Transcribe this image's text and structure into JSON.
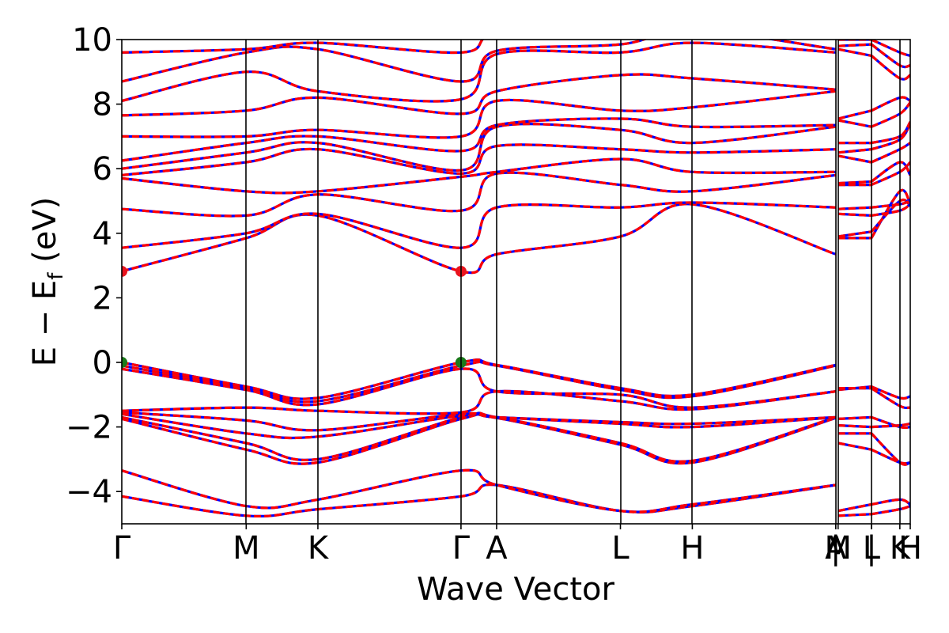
{
  "chart_data": {
    "type": "line",
    "xlabel": "Wave Vector",
    "ylabel": "E − E",
    "ylabel_sub": "f",
    "ylabel_unit": " (eV)",
    "ylim": [
      -5,
      10
    ],
    "yticks": [
      -4,
      -2,
      0,
      2,
      4,
      6,
      8,
      10
    ],
    "ytick_labels": [
      "−4",
      "−2",
      "0",
      "2",
      "4",
      "6",
      "8",
      "10"
    ],
    "xlim": [
      0,
      1
    ],
    "kpoints": [
      {
        "label": "Γ",
        "x": 0.0
      },
      {
        "label": "M",
        "x": 0.1578
      },
      {
        "label": "K",
        "x": 0.2487
      },
      {
        "label": "Γ",
        "x": 0.4302
      },
      {
        "label": "A",
        "x": 0.4754
      },
      {
        "label": "L",
        "x": 0.6324
      },
      {
        "label": "H",
        "x": 0.7236
      },
      {
        "label": "A",
        "x": 0.9055
      },
      {
        "label": "|",
        "x": 0.9055
      },
      {
        "label": "M",
        "x": 0.9085
      },
      {
        "label": "L",
        "x": 0.9508
      },
      {
        "label": "|",
        "x": 0.9508
      },
      {
        "label": "K",
        "x": 0.9868
      },
      {
        "label": "H",
        "x": 1.0
      }
    ],
    "gap_markers": [
      {
        "role": "CBM",
        "color": "#e8141e",
        "points": [
          [
            0.0,
            2.82
          ],
          [
            0.4302,
            2.82
          ]
        ]
      },
      {
        "role": "VBM",
        "color": "#1a7a1a",
        "points": [
          [
            0.0,
            0.0
          ],
          [
            0.4302,
            0.0
          ]
        ]
      }
    ],
    "line_colors": {
      "primary": "#ff0000",
      "secondary": "#0000ff"
    },
    "segments": [
      {
        "x": [
          0.0,
          0.1578,
          0.2487,
          0.4302,
          0.4754,
          0.6324,
          0.7236,
          0.9055
        ],
        "bands": [
          [
            -4.15,
            -4.75,
            -4.55,
            -4.15,
            -3.8,
            -4.6,
            -4.45,
            -3.8
          ],
          [
            -3.35,
            -4.45,
            -4.25,
            -3.35,
            -3.8,
            -4.6,
            -4.4,
            -3.8
          ],
          [
            -1.75,
            -2.7,
            -3.1,
            -1.75,
            -1.72,
            -2.55,
            -3.1,
            -1.72
          ],
          [
            -1.7,
            -2.5,
            -3.0,
            -1.7,
            -1.7,
            -2.5,
            -3.05,
            -1.7
          ],
          [
            -1.6,
            -2.2,
            -2.3,
            -1.65,
            -1.7,
            -1.9,
            -2.0,
            -1.7
          ],
          [
            -1.55,
            -1.8,
            -2.1,
            -1.6,
            -1.7,
            -1.85,
            -1.9,
            -1.7
          ],
          [
            -1.5,
            -1.4,
            -1.5,
            -1.55,
            -0.9,
            -1.2,
            -1.45,
            -0.9
          ],
          [
            -0.2,
            -0.85,
            -1.3,
            -0.2,
            -0.9,
            -1.0,
            -1.4,
            -0.9
          ],
          [
            -0.1,
            -0.8,
            -1.2,
            -0.1,
            -0.1,
            -0.85,
            -1.05,
            -0.1
          ],
          [
            0.0,
            -0.75,
            -1.1,
            0.0,
            -0.08,
            -0.8,
            -1.0,
            -0.08
          ],
          [
            2.82,
            3.85,
            4.55,
            2.82,
            3.35,
            3.9,
            4.9,
            3.35
          ],
          [
            3.55,
            4.0,
            4.6,
            3.55,
            4.8,
            4.8,
            4.95,
            4.8
          ],
          [
            4.75,
            4.55,
            5.2,
            4.7,
            5.85,
            5.5,
            5.3,
            5.8
          ],
          [
            5.7,
            5.3,
            5.3,
            5.75,
            5.9,
            6.3,
            5.9,
            5.9
          ],
          [
            5.8,
            6.2,
            6.6,
            5.85,
            6.7,
            6.6,
            6.5,
            6.6
          ],
          [
            6.0,
            6.5,
            6.8,
            5.95,
            7.3,
            7.2,
            6.8,
            7.3
          ],
          [
            6.25,
            6.8,
            7.0,
            6.55,
            7.35,
            7.55,
            7.3,
            7.35
          ],
          [
            7.0,
            7.0,
            7.2,
            7.0,
            8.1,
            7.8,
            7.9,
            8.4
          ],
          [
            7.65,
            7.8,
            8.2,
            7.7,
            8.4,
            8.9,
            8.8,
            8.45
          ],
          [
            8.1,
            9.0,
            8.4,
            8.15,
            9.55,
            9.6,
            9.9,
            9.6
          ],
          [
            8.7,
            9.6,
            9.7,
            8.7,
            9.65,
            9.85,
            10.3,
            9.7
          ],
          [
            9.6,
            9.7,
            9.9,
            9.6,
            10.2,
            10.4,
            10.5,
            10.3
          ]
        ]
      },
      {
        "x": [
          0.9085,
          0.9508
        ],
        "bands": [
          [
            -4.6,
            -4.4
          ],
          [
            -4.75,
            -4.7
          ],
          [
            -2.5,
            -2.7
          ],
          [
            -2.2,
            -2.2
          ],
          [
            -1.75,
            -1.7
          ],
          [
            -1.95,
            -2.0
          ],
          [
            -0.85,
            -0.75
          ],
          [
            -0.8,
            -0.8
          ],
          [
            3.85,
            3.85
          ],
          [
            3.9,
            4.05
          ],
          [
            4.6,
            4.55
          ],
          [
            4.75,
            4.8
          ],
          [
            5.5,
            5.5
          ],
          [
            5.55,
            5.6
          ],
          [
            6.4,
            6.2
          ],
          [
            6.5,
            6.6
          ],
          [
            6.8,
            6.8
          ],
          [
            7.5,
            7.3
          ],
          [
            7.55,
            7.8
          ],
          [
            9.7,
            9.5
          ],
          [
            9.8,
            9.85
          ],
          [
            10.0,
            10.0
          ]
        ]
      },
      {
        "x": [
          0.9508,
          0.9868,
          1.0
        ],
        "bands": [
          [
            -4.4,
            -4.25,
            -4.4
          ],
          [
            -4.7,
            -4.55,
            -4.45
          ],
          [
            -2.7,
            -3.1,
            -3.1
          ],
          [
            -2.2,
            -3.1,
            -3.1
          ],
          [
            -1.7,
            -2.0,
            -2.0
          ],
          [
            -2.0,
            -1.95,
            -1.9
          ],
          [
            -0.75,
            -1.1,
            -1.05
          ],
          [
            -0.8,
            -1.35,
            -1.4
          ],
          [
            3.85,
            5.3,
            4.9
          ],
          [
            4.05,
            5.0,
            4.85
          ],
          [
            4.55,
            4.7,
            4.9
          ],
          [
            4.8,
            4.9,
            5.0
          ],
          [
            5.5,
            5.9,
            6.2
          ],
          [
            5.6,
            6.2,
            5.8
          ],
          [
            6.2,
            6.6,
            6.8
          ],
          [
            6.6,
            6.9,
            7.4
          ],
          [
            6.8,
            7.0,
            7.45
          ],
          [
            7.3,
            7.7,
            8.05
          ],
          [
            7.8,
            8.2,
            8.1
          ],
          [
            9.5,
            8.8,
            8.9
          ],
          [
            9.85,
            9.2,
            9.2
          ],
          [
            10.0,
            9.6,
            9.5
          ]
        ]
      }
    ]
  }
}
